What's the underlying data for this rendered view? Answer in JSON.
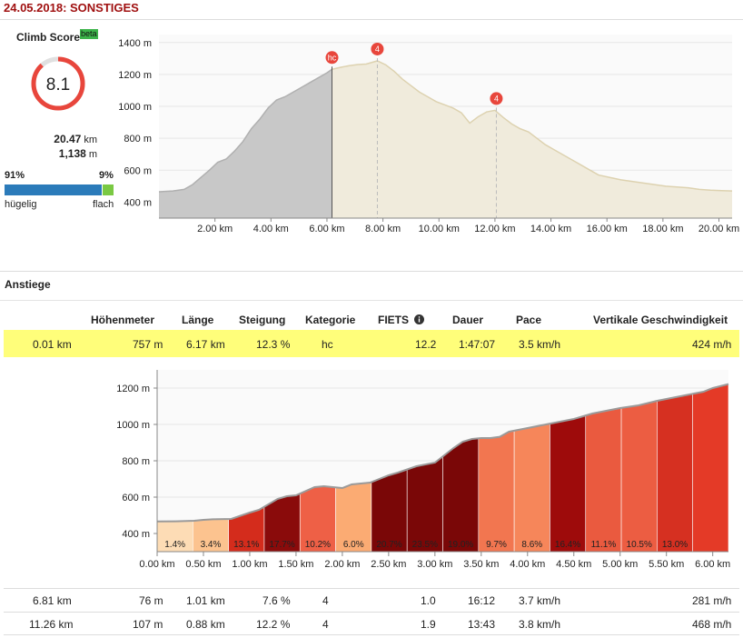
{
  "header": {
    "title": "24.05.2018: SONSTIGES"
  },
  "score": {
    "label": "Climb Score",
    "badge": "beta",
    "value": "8.1",
    "distance": "20.47",
    "distance_unit": "km",
    "elevation": "1,138",
    "elevation_unit": "m",
    "hilly_pct": "91%",
    "flat_pct": "9%",
    "hilly_label": "hügelig",
    "flat_label": "flach",
    "colors": {
      "gauge": "#e8463c",
      "hilly": "#2b7bba",
      "flat": "#7ac943"
    }
  },
  "section_title": "Anstiege",
  "table": {
    "headers": [
      "Höhenmeter",
      "Länge",
      "Steigung",
      "Kategorie",
      "FIETS",
      "Dauer",
      "Pace",
      "Vertikale Geschwindigkeit"
    ],
    "rows": [
      {
        "start": "0.01 km",
        "hm": "757 m",
        "len": "6.17 km",
        "grade": "12.3 %",
        "cat": "hc",
        "fiets": "12.2",
        "dur": "1:47:07",
        "pace": "3.5 km/h",
        "vs": "424 m/h",
        "highlight": true
      },
      {
        "start": "6.81 km",
        "hm": "76 m",
        "len": "1.01 km",
        "grade": "7.6 %",
        "cat": "4",
        "fiets": "1.0",
        "dur": "16:12",
        "pace": "3.7 km/h",
        "vs": "281 m/h"
      },
      {
        "start": "11.26 km",
        "hm": "107 m",
        "len": "0.88 km",
        "grade": "12.2 %",
        "cat": "4",
        "fiets": "1.9",
        "dur": "13:43",
        "pace": "3.8 km/h",
        "vs": "468 m/h"
      }
    ]
  },
  "chart_data": [
    {
      "type": "area",
      "x_unit": "km",
      "y_unit": "m",
      "xlim": [
        0,
        20.47
      ],
      "ylim": [
        300,
        1450
      ],
      "x_ticks": [
        "2.00 km",
        "4.00 km",
        "6.00 km",
        "8.00 km",
        "10.00 km",
        "12.00 km",
        "14.00 km",
        "16.00 km",
        "18.00 km",
        "20.00 km"
      ],
      "y_ticks": [
        "400 m",
        "600 m",
        "800 m",
        "1000 m",
        "1200 m",
        "1400 m"
      ],
      "series": [
        {
          "x": [
            0,
            0.5,
            0.9,
            1.2,
            1.5,
            1.8,
            2.1,
            2.4,
            2.7,
            3.0,
            3.3,
            3.6,
            3.9,
            4.2,
            4.5,
            4.8,
            5.1,
            5.4,
            5.7,
            6.0,
            6.18
          ],
          "y": [
            465,
            470,
            480,
            510,
            555,
            600,
            650,
            670,
            720,
            780,
            860,
            920,
            990,
            1040,
            1060,
            1090,
            1120,
            1150,
            1180,
            1210,
            1232
          ]
        },
        {
          "x": [
            6.18,
            6.5,
            6.8,
            7.1,
            7.4,
            7.8,
            8.1,
            8.4,
            8.7,
            9.0,
            9.3,
            9.6,
            9.9,
            10.2,
            10.5,
            10.8,
            11.1,
            11.4,
            11.7,
            12.0,
            12.3,
            12.6,
            12.9,
            13.2,
            13.5,
            13.8,
            14.1,
            14.5,
            14.9,
            15.3,
            15.7,
            16.1,
            16.5,
            16.9,
            17.3,
            17.7,
            18.1,
            18.5,
            18.9,
            19.3,
            19.7,
            20.1,
            20.47
          ],
          "y": [
            1232,
            1245,
            1255,
            1262,
            1265,
            1285,
            1260,
            1220,
            1170,
            1130,
            1090,
            1060,
            1030,
            1010,
            990,
            960,
            895,
            935,
            965,
            975,
            930,
            890,
            860,
            840,
            800,
            760,
            730,
            690,
            650,
            610,
            570,
            555,
            540,
            530,
            520,
            510,
            500,
            495,
            490,
            480,
            475,
            472,
            470
          ]
        }
      ],
      "markers": [
        {
          "x": 6.18,
          "y": 1232,
          "label": "hc"
        },
        {
          "x": 7.8,
          "y": 1285,
          "label": "4"
        },
        {
          "x": 12.05,
          "y": 975,
          "label": "4"
        }
      ],
      "colors": {
        "climb": "#c8c8c8",
        "rest": "#f0ebdc",
        "marker": "#e8463c"
      }
    },
    {
      "type": "area",
      "x_unit": "km",
      "y_unit": "m",
      "xlim": [
        0,
        6.17
      ],
      "ylim": [
        300,
        1300
      ],
      "x_ticks": [
        "0.00 km",
        "0.50 km",
        "1.00 km",
        "1.50 km",
        "2.00 km",
        "2.50 km",
        "3.00 km",
        "3.50 km",
        "4.00 km",
        "4.50 km",
        "5.00 km",
        "5.50 km",
        "6.00 km"
      ],
      "y_ticks": [
        "400 m",
        "600 m",
        "800 m",
        "1000 m",
        "1200 m"
      ],
      "profile": {
        "x": [
          0,
          0.2,
          0.4,
          0.5,
          0.6,
          0.8,
          1.0,
          1.1,
          1.3,
          1.4,
          1.5,
          1.7,
          1.8,
          2.0,
          2.1,
          2.3,
          2.5,
          2.6,
          2.8,
          3.0,
          3.1,
          3.2,
          3.3,
          3.4,
          3.5,
          3.6,
          3.7,
          3.8,
          3.9,
          4.0,
          4.2,
          4.4,
          4.5,
          4.7,
          4.9,
          5.0,
          5.2,
          5.4,
          5.5,
          5.7,
          5.9,
          6.0,
          6.17
        ],
        "y": [
          466,
          467,
          470,
          475,
          478,
          480,
          515,
          530,
          590,
          605,
          610,
          655,
          660,
          650,
          670,
          680,
          720,
          735,
          770,
          790,
          830,
          870,
          905,
          920,
          925,
          925,
          932,
          960,
          970,
          980,
          1000,
          1020,
          1030,
          1060,
          1080,
          1090,
          1105,
          1130,
          1140,
          1160,
          1180,
          1200,
          1222
        ]
      },
      "segments": [
        {
          "label": "1.4%",
          "value": 1.4,
          "color": "#fddcb5"
        },
        {
          "label": "3.4%",
          "value": 3.4,
          "color": "#fcc38f"
        },
        {
          "label": "13.1%",
          "value": 13.1,
          "color": "#d42c1c"
        },
        {
          "label": "17.7%",
          "value": 17.7,
          "color": "#8a0b0b"
        },
        {
          "label": "10.2%",
          "value": 10.2,
          "color": "#ee6046"
        },
        {
          "label": "6.0%",
          "value": 6.0,
          "color": "#fbab73"
        },
        {
          "label": "20.7%",
          "value": 20.7,
          "color": "#7a0707"
        },
        {
          "label": "23.5%",
          "value": 23.5,
          "color": "#7a0707"
        },
        {
          "label": "19.0%",
          "value": 19.0,
          "color": "#7a0707"
        },
        {
          "label": "9.7%",
          "value": 9.7,
          "color": "#f27650"
        },
        {
          "label": "8.6%",
          "value": 8.6,
          "color": "#f6865a"
        },
        {
          "label": "16.4%",
          "value": 16.4,
          "color": "#9e0b0b"
        },
        {
          "label": "11.1%",
          "value": 11.1,
          "color": "#ea5a3f"
        },
        {
          "label": "10.5%",
          "value": 10.5,
          "color": "#ec5d42"
        },
        {
          "label": "13.0%",
          "value": 13.0,
          "color": "#d63021"
        },
        {
          "label": "",
          "value": null,
          "color": "#e43a27"
        }
      ]
    }
  ]
}
